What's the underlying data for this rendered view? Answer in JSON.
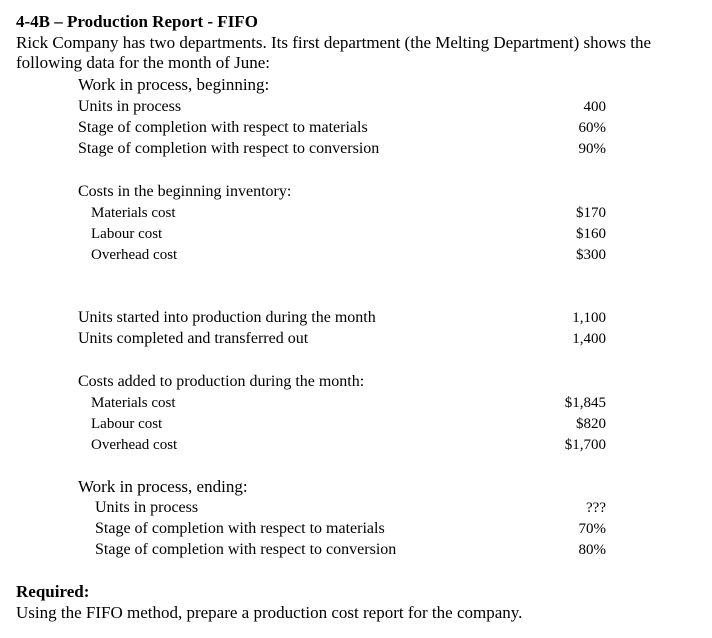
{
  "header": {
    "title": "4-4B – Production Report - FIFO",
    "intro_line1": "Rick Company has two departments.  Its first department (the Melting Department) shows the",
    "intro_line2": "following data for the month of June:"
  },
  "wip_beginning": {
    "heading": "Work in process, beginning:",
    "rows": [
      {
        "label": "Units in process",
        "value": "400"
      },
      {
        "label": "Stage of completion with respect to materials",
        "value": "60%"
      },
      {
        "label": "Stage of completion with respect to conversion",
        "value": "90%"
      }
    ]
  },
  "beginning_costs": {
    "heading": "Costs in the beginning inventory:",
    "rows": [
      {
        "label": "Materials cost",
        "value": "$170"
      },
      {
        "label": "Labour cost",
        "value": "$160"
      },
      {
        "label": "Overhead cost",
        "value": "$300"
      }
    ]
  },
  "units": {
    "rows": [
      {
        "label": "Units started into production during the month",
        "value": "1,100"
      },
      {
        "label": "Units completed and transferred out",
        "value": "1,400"
      }
    ]
  },
  "added_costs": {
    "heading": "Costs added to production during the month:",
    "rows": [
      {
        "label": "Materials cost",
        "value": "$1,845"
      },
      {
        "label": "Labour cost",
        "value": "$820"
      },
      {
        "label": "Overhead cost",
        "value": "$1,700"
      }
    ]
  },
  "wip_ending": {
    "heading": "Work in process, ending:",
    "rows": [
      {
        "label": "Units in process",
        "value": "???"
      },
      {
        "label": "Stage of completion with respect to materials",
        "value": "70%"
      },
      {
        "label": "Stage of completion with respect to conversion",
        "value": "80%"
      }
    ]
  },
  "required": {
    "heading": "Required:",
    "text": "Using the FIFO method, prepare a production cost report for the company."
  }
}
